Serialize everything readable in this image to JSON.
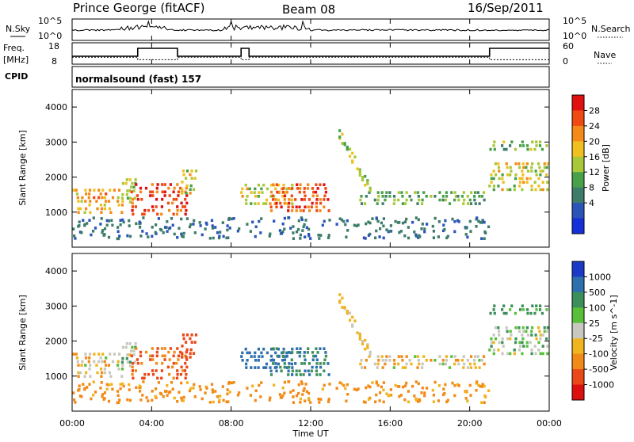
{
  "header": {
    "title": "Prince George (fitACF)",
    "beam": "Beam 08",
    "date": "16/Sep/2011"
  },
  "nsky_panel": {
    "left_label": "N.Sky",
    "right_label": "N.Search",
    "left_ticks": [
      "10^5",
      "10^0"
    ],
    "right_ticks": [
      "10^5",
      "10^0"
    ]
  },
  "freq_panel": {
    "left_label_1": "Freq.",
    "left_label_2": "[MHz]",
    "right_label": "Nave",
    "left_ticks": [
      "18",
      "8"
    ],
    "right_ticks": [
      "60",
      "0"
    ],
    "cpid_label": "CPID",
    "cpid_text": "normalsound (fast) 157",
    "freq_steps": [
      {
        "t": 0.0,
        "v": 11.5
      },
      {
        "t": 3.3,
        "v": 16.5
      },
      {
        "t": 5.3,
        "v": 11.5
      },
      {
        "t": 8.5,
        "v": 16.5
      },
      {
        "t": 8.9,
        "v": 11.5
      },
      {
        "t": 21.0,
        "v": 16.5
      },
      {
        "t": 24.0,
        "v": 16.5
      }
    ],
    "nave_steps": [
      {
        "t": 0.0,
        "v": 22
      },
      {
        "t": 3.3,
        "v": 14
      },
      {
        "t": 5.3,
        "v": 22
      },
      {
        "t": 8.5,
        "v": 14
      },
      {
        "t": 8.9,
        "v": 22
      },
      {
        "t": 21.0,
        "v": 14
      },
      {
        "t": 24.0,
        "v": 14
      }
    ]
  },
  "power_panel": {
    "ylabel": "Slant Range [km]",
    "yticks": [
      "1000",
      "2000",
      "3000",
      "4000"
    ],
    "colorbar_label": "Power [dB]",
    "colorbar_ticks": [
      "4",
      "8",
      "12",
      "16",
      "20",
      "24",
      "28"
    ],
    "colors": [
      "#1530d8",
      "#2a55b8",
      "#3d7c6a",
      "#48a048",
      "#a8c83a",
      "#f0c020",
      "#f58a18",
      "#ee4a12",
      "#e01010"
    ]
  },
  "velocity_panel": {
    "ylabel": "Slant Range [km]",
    "yticks": [
      "1000",
      "2000",
      "3000",
      "4000"
    ],
    "colorbar_label": "Velocity [m s^-1]",
    "colorbar_ticks": [
      "1000",
      "500",
      "100",
      "25",
      "-25",
      "-100",
      "-500",
      "-1000"
    ],
    "colors": [
      "#1a3ac8",
      "#2e6fae",
      "#3c8f5a",
      "#58c038",
      "#c8c8c0",
      "#f0b41e",
      "#f28a18",
      "#ea4818",
      "#dd1010"
    ]
  },
  "xaxis": {
    "label": "Time UT",
    "ticks": [
      "00:00",
      "04:00",
      "08:00",
      "12:00",
      "16:00",
      "20:00",
      "00:00"
    ]
  },
  "chart_data": {
    "type": "heatmap",
    "title": "Prince George (fitACF)",
    "xlabel": "Time UT",
    "ylabel": "Slant Range [km]",
    "xlim_hours": [
      0,
      24
    ],
    "ylim_km": [
      0,
      4500
    ],
    "grid": false,
    "echo_regions": [
      {
        "t0": 0.0,
        "t1": 2.5,
        "r0": 950,
        "r1": 1650,
        "power_db": 22,
        "velocity": -25
      },
      {
        "t0": 2.5,
        "t1": 3.2,
        "r0": 1250,
        "r1": 1900,
        "power_db": 14,
        "velocity": 25
      },
      {
        "t0": 3.0,
        "t1": 5.7,
        "r0": 900,
        "r1": 1800,
        "power_db": 28,
        "velocity": -300
      },
      {
        "t0": 5.5,
        "t1": 6.3,
        "r0": 1500,
        "r1": 2200,
        "power_db": 18,
        "velocity": -400
      },
      {
        "t0": 8.5,
        "t1": 11.0,
        "r0": 1200,
        "r1": 1800,
        "power_db": 18,
        "velocity": 500
      },
      {
        "t0": 10.0,
        "t1": 13.0,
        "r0": 1000,
        "r1": 1800,
        "power_db": 28,
        "velocity": 300
      },
      {
        "t0": 14.5,
        "t1": 20.7,
        "r0": 1200,
        "r1": 1600,
        "power_db": 12,
        "velocity": -25
      },
      {
        "t0": 21.0,
        "t1": 24.0,
        "r0": 1600,
        "r1": 2400,
        "power_db": 18,
        "velocity": 25
      },
      {
        "t0": 21.0,
        "t1": 24.0,
        "r0": 2750,
        "r1": 3000,
        "power_db": 14,
        "velocity": 100
      }
    ],
    "slant_band": {
      "t0": 13.4,
      "t1": 15.0,
      "r_top": 3200,
      "r_bottom": 1500,
      "power_db": 16,
      "velocity": -25
    }
  }
}
